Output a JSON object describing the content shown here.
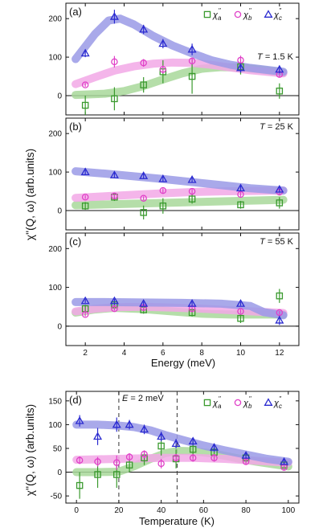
{
  "colors": {
    "a": "#3a9a2e",
    "b": "#e040c8",
    "c": "#2a2ad0",
    "a_fit": "#a8d89a",
    "b_fit": "#f2a8e6",
    "c_fit": "#9a9ae6"
  },
  "chart_data": [
    {
      "type": "scatter",
      "panel_label": "(a)",
      "annotation": "T = 1.5 K",
      "ylabel": "χ''(Q, ω) (arb.units)",
      "xlabel": "",
      "xlim": [
        1,
        13
      ],
      "ylim": [
        -50,
        240
      ],
      "xticks": [
        2,
        4,
        6,
        8,
        10,
        12
      ],
      "yticks": [
        0,
        100,
        200
      ],
      "legend": [
        "χ_a''",
        "χ_b''",
        "χ_c''"
      ],
      "series": [
        {
          "key": "a",
          "marker": "square",
          "x": [
            2,
            3.5,
            5,
            6,
            7.5,
            10,
            12
          ],
          "y": [
            -25,
            -8,
            28,
            62,
            50,
            75,
            12
          ],
          "err": [
            25,
            30,
            20,
            30,
            45,
            20,
            20
          ],
          "fit_x": [
            1.5,
            3,
            4,
            5,
            6,
            7,
            8,
            9,
            10,
            11,
            12.2
          ],
          "fit_y": [
            2,
            5,
            12,
            25,
            42,
            58,
            70,
            74,
            73,
            68,
            60
          ]
        },
        {
          "key": "b",
          "marker": "circle",
          "x": [
            2,
            3.5,
            5,
            6,
            7.5,
            10,
            12
          ],
          "y": [
            28,
            88,
            85,
            68,
            90,
            92,
            55
          ],
          "err": [
            5,
            15,
            10,
            10,
            8,
            12,
            8
          ],
          "fit_x": [
            1.5,
            2.5,
            3.5,
            4.5,
            5.5,
            6.5,
            7.5,
            8.5,
            9.5,
            10.5,
            12.2
          ],
          "fit_y": [
            30,
            48,
            65,
            76,
            83,
            86,
            85,
            80,
            73,
            66,
            58
          ]
        },
        {
          "key": "c",
          "marker": "triangle",
          "x": [
            2,
            3.5,
            5,
            6,
            7.5,
            10,
            12
          ],
          "y": [
            110,
            205,
            172,
            135,
            120,
            72,
            68
          ],
          "err": [
            10,
            18,
            12,
            12,
            15,
            12,
            10
          ],
          "fit_x": [
            1.5,
            2.5,
            3.2,
            3.8,
            4.5,
            5.5,
            6.5,
            7.5,
            8.5,
            9.5,
            10.5,
            11.5,
            12.2
          ],
          "fit_y": [
            95,
            160,
            195,
            200,
            185,
            155,
            130,
            110,
            92,
            80,
            72,
            66,
            62
          ]
        }
      ]
    },
    {
      "type": "scatter",
      "panel_label": "(b)",
      "annotation": "T = 25 K",
      "ylabel": "",
      "xlabel": "",
      "xlim": [
        1,
        13
      ],
      "ylim": [
        -50,
        240
      ],
      "xticks": [
        2,
        4,
        6,
        8,
        10,
        12
      ],
      "yticks": [
        0,
        100,
        200
      ],
      "series": [
        {
          "key": "a",
          "marker": "square",
          "x": [
            2,
            3.5,
            5,
            6,
            7.5,
            10,
            12
          ],
          "y": [
            12,
            35,
            -5,
            12,
            30,
            15,
            20
          ],
          "err": [
            10,
            10,
            18,
            20,
            12,
            10,
            15
          ],
          "fit_x": [
            1.5,
            12.2
          ],
          "fit_y": [
            14,
            28
          ]
        },
        {
          "key": "b",
          "marker": "circle",
          "x": [
            2,
            3.5,
            5,
            6,
            7.5,
            10,
            12
          ],
          "y": [
            35,
            38,
            32,
            52,
            50,
            42,
            48
          ],
          "err": [
            5,
            5,
            5,
            6,
            6,
            6,
            6
          ],
          "fit_x": [
            1.5,
            3,
            4.5,
            6,
            7.5,
            9,
            10.5,
            12.2
          ],
          "fit_y": [
            33,
            37,
            41,
            45,
            48,
            50,
            51,
            52
          ]
        },
        {
          "key": "c",
          "marker": "triangle",
          "x": [
            2,
            3.5,
            5,
            6,
            7.5,
            10,
            12
          ],
          "y": [
            100,
            92,
            90,
            82,
            80,
            58,
            55
          ],
          "err": [
            6,
            6,
            6,
            6,
            6,
            6,
            6
          ],
          "fit_x": [
            1.5,
            3,
            4.5,
            6,
            7.5,
            9,
            10.5,
            12.2
          ],
          "fit_y": [
            102,
            96,
            89,
            82,
            74,
            66,
            58,
            52
          ]
        }
      ]
    },
    {
      "type": "scatter",
      "panel_label": "(c)",
      "annotation": "T = 55 K",
      "ylabel": "",
      "xlabel": "Energy (meV)",
      "xlim": [
        1,
        13
      ],
      "ylim": [
        -50,
        240
      ],
      "xticks": [
        2,
        4,
        6,
        8,
        10,
        12
      ],
      "yticks": [
        0,
        100,
        200
      ],
      "series": [
        {
          "key": "a",
          "marker": "square",
          "x": [
            2,
            3.5,
            5,
            7.5,
            10,
            12
          ],
          "y": [
            45,
            55,
            42,
            35,
            20,
            78
          ],
          "err": [
            10,
            10,
            10,
            10,
            12,
            18
          ],
          "fit_x": [
            1.5,
            2.5,
            3.5,
            5,
            6.5,
            8,
            9.5,
            11,
            12.2
          ],
          "fit_y": [
            35,
            43,
            47,
            44,
            38,
            32,
            30,
            30,
            30
          ]
        },
        {
          "key": "b",
          "marker": "circle",
          "x": [
            2,
            3.5,
            5,
            7.5,
            10,
            12
          ],
          "y": [
            30,
            45,
            48,
            45,
            38,
            35
          ],
          "err": [
            5,
            5,
            5,
            5,
            5,
            5
          ],
          "fit_x": [
            1.5,
            2.5,
            3.5,
            5,
            6.5,
            8,
            9.5,
            11,
            12.2
          ],
          "fit_y": [
            38,
            45,
            49,
            50,
            48,
            45,
            41,
            37,
            34
          ]
        },
        {
          "key": "c",
          "marker": "triangle",
          "x": [
            2,
            3.5,
            5,
            7.5,
            10,
            12
          ],
          "y": [
            65,
            65,
            58,
            58,
            58,
            15
          ],
          "err": [
            5,
            5,
            5,
            5,
            5,
            12
          ],
          "fit_x": [
            1.5,
            3,
            5,
            7,
            9,
            10.5,
            11.2,
            12.2
          ],
          "fit_y": [
            62,
            62,
            61,
            60,
            58,
            52,
            36,
            28
          ]
        }
      ]
    },
    {
      "type": "scatter",
      "panel_label": "(d)",
      "annotation": "E = 2 meV",
      "ylabel": "χ''(Q, ω) (arb.units)",
      "xlabel": "Temperature (K)",
      "xlim": [
        -5,
        105
      ],
      "ylim": [
        -65,
        170
      ],
      "xticks": [
        0,
        20,
        40,
        60,
        80,
        100
      ],
      "yticks": [
        -50,
        0,
        50,
        100,
        150
      ],
      "vlines": [
        20,
        47.5
      ],
      "legend": [
        "χ_a''",
        "χ_b''",
        "χ_c''"
      ],
      "series": [
        {
          "key": "a",
          "marker": "square",
          "x": [
            1.5,
            10,
            19,
            25,
            32,
            40,
            47,
            55,
            65,
            80,
            98
          ],
          "y": [
            -28,
            -5,
            -5,
            15,
            30,
            55,
            28,
            48,
            42,
            30,
            15
          ],
          "err": [
            28,
            28,
            28,
            15,
            15,
            20,
            20,
            18,
            15,
            10,
            8
          ],
          "fit_x": [
            0,
            10,
            20,
            27,
            35,
            42,
            48,
            55,
            65,
            75,
            85,
            100
          ],
          "fit_y": [
            0,
            0,
            1,
            12,
            28,
            40,
            45,
            44,
            39,
            30,
            22,
            12
          ]
        },
        {
          "key": "b",
          "marker": "circle",
          "x": [
            1.5,
            10,
            19,
            25,
            32,
            40,
            47,
            55,
            65,
            80,
            98
          ],
          "y": [
            25,
            22,
            20,
            32,
            38,
            18,
            30,
            30,
            30,
            22,
            10
          ],
          "err": [
            8,
            10,
            15,
            8,
            8,
            10,
            8,
            8,
            8,
            6,
            6
          ],
          "fit_x": [
            0,
            20,
            40,
            55,
            70,
            85,
            100
          ],
          "fit_y": [
            26,
            28,
            30,
            30,
            28,
            24,
            20
          ]
        },
        {
          "key": "c",
          "marker": "triangle",
          "x": [
            1.5,
            10,
            19,
            25,
            32,
            40,
            47,
            55,
            65,
            80,
            98
          ],
          "y": [
            108,
            75,
            100,
            100,
            90,
            75,
            60,
            65,
            52,
            35,
            22
          ],
          "err": [
            12,
            18,
            15,
            10,
            10,
            10,
            10,
            8,
            8,
            6,
            6
          ],
          "fit_x": [
            0,
            10,
            20,
            27,
            35,
            42,
            50,
            60,
            70,
            80,
            90,
            100
          ],
          "fit_y": [
            100,
            100,
            98,
            95,
            88,
            78,
            68,
            56,
            46,
            37,
            28,
            22
          ]
        }
      ]
    }
  ]
}
